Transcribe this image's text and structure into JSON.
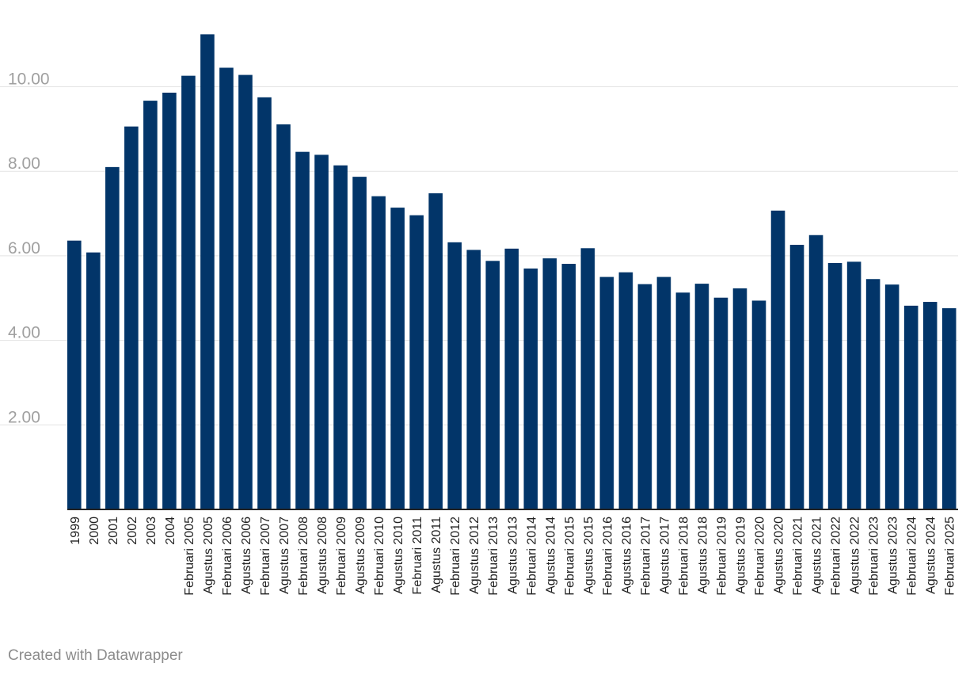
{
  "chart_data": {
    "type": "bar",
    "title": "",
    "xlabel": "",
    "ylabel": "",
    "ylim": [
      0,
      11.5
    ],
    "yticks": [
      2,
      4,
      6,
      8,
      10
    ],
    "ytick_labels": [
      "2.00",
      "4.00",
      "6.00",
      "8.00",
      "10.00"
    ],
    "grid": true,
    "bar_color": "#023569",
    "categories": [
      "1999",
      "2000",
      "2001",
      "2002",
      "2003",
      "2004",
      "Februari 2005",
      "Agustus 2005",
      "Februari 2006",
      "Agustus 2006",
      "Februari 2007",
      "Agustus 2007",
      "Februari 2008",
      "Agustus 2008",
      "Februari 2009",
      "Agustus 2009",
      "Februari 2010",
      "Agustus 2010",
      "Februari 2011",
      "Agustus 2011",
      "Februari 2012",
      "Agustus 2012",
      "Februari 2013",
      "Agustus 2013",
      "Februari 2014",
      "Agustus 2014",
      "Februari 2015",
      "Agustus 2015",
      "Februari 2016",
      "Agustus 2016",
      "Februari 2017",
      "Agustus 2017",
      "Februari 2018",
      "Agustus 2018",
      "Februari 2019",
      "Agustus 2019",
      "Februari 2020",
      "Agustus 2020",
      "Februari 2021",
      "Agustus 2021",
      "Februari 2022",
      "Agustus 2022",
      "Februari 2023",
      "Agustus 2023",
      "Februari 2024",
      "Agustus 2024",
      "Februari 2025"
    ],
    "values": [
      6.36,
      6.08,
      8.1,
      9.06,
      9.67,
      9.86,
      10.26,
      11.24,
      10.45,
      10.28,
      9.75,
      9.11,
      8.46,
      8.39,
      8.14,
      7.87,
      7.41,
      7.14,
      6.96,
      7.48,
      6.32,
      6.14,
      5.88,
      6.17,
      5.7,
      5.94,
      5.81,
      6.18,
      5.5,
      5.61,
      5.33,
      5.5,
      5.13,
      5.34,
      5.01,
      5.23,
      4.94,
      7.07,
      6.26,
      6.49,
      5.83,
      5.86,
      5.45,
      5.32,
      4.82,
      4.91,
      4.76
    ]
  },
  "footer": {
    "credit": "Created with Datawrapper"
  }
}
